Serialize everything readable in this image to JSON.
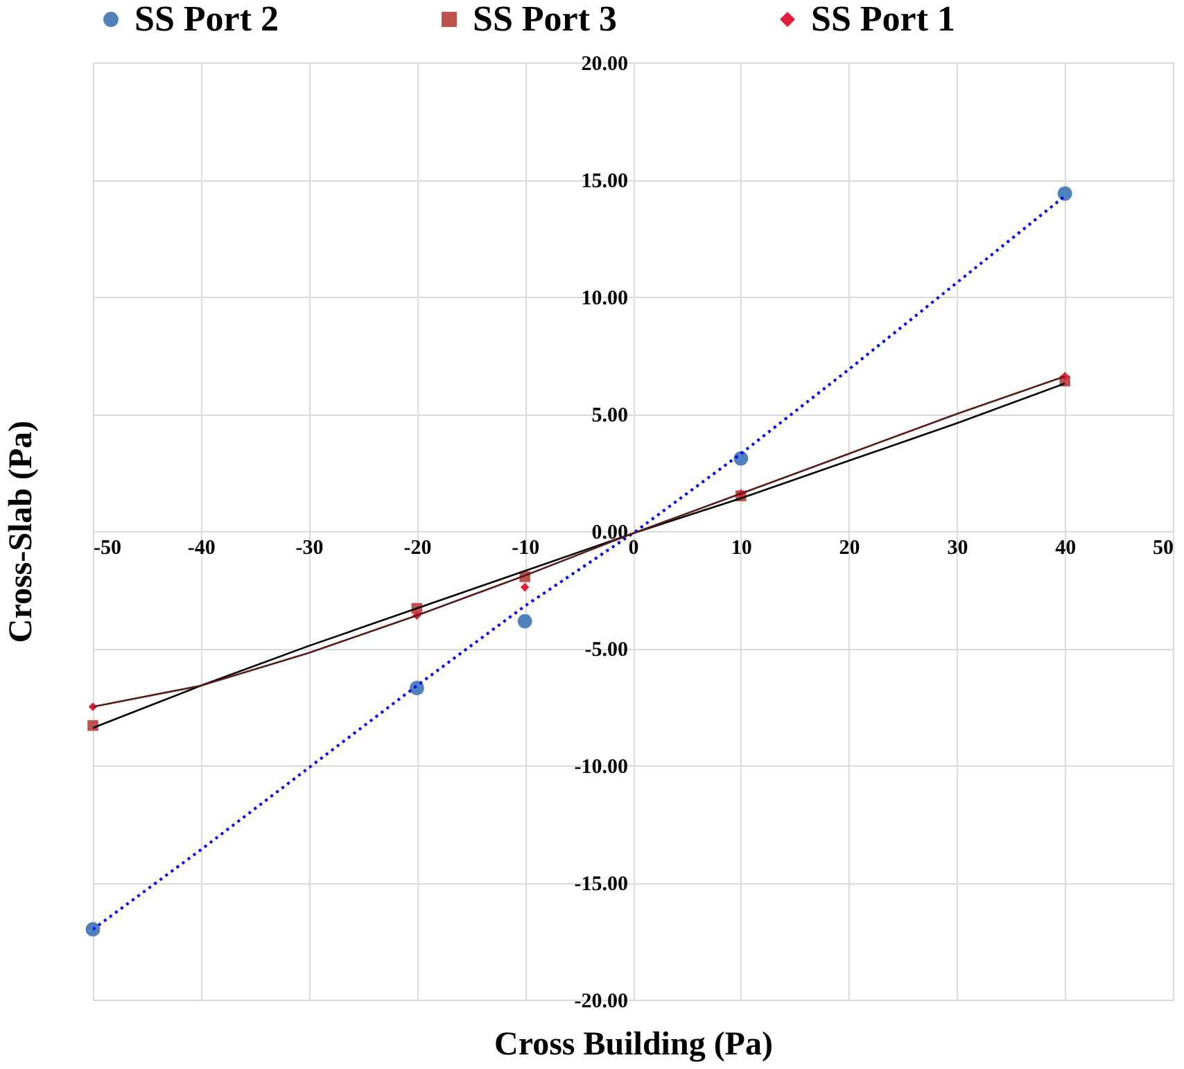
{
  "chart_data": {
    "type": "scatter",
    "xlabel": "Cross Building (Pa)",
    "ylabel": "Cross-Slab (Pa)",
    "xlim": [
      -50,
      50
    ],
    "xticks": [
      -50,
      -40,
      -30,
      -20,
      -10,
      0,
      10,
      20,
      30,
      40,
      50
    ],
    "ylim": [
      -20,
      20
    ],
    "yticks": [
      {
        "value": -20,
        "label": "-20.00"
      },
      {
        "value": -15,
        "label": "-15.00"
      },
      {
        "value": -10,
        "label": "-10.00"
      },
      {
        "value": -5,
        "label": "-5.00"
      },
      {
        "value": 0,
        "label": "0.00"
      },
      {
        "value": 5,
        "label": "5.00"
      },
      {
        "value": 10,
        "label": "10.00"
      },
      {
        "value": 15,
        "label": "15.00"
      },
      {
        "value": 20,
        "label": "20.00"
      }
    ],
    "grid": true,
    "legend": "top",
    "series": [
      {
        "name": "SS Port 2",
        "marker": "circle",
        "color": "#4f81bd",
        "x": [
          -50,
          -20,
          -10,
          10,
          40
        ],
        "values": [
          -17.0,
          -6.7,
          -3.85,
          3.1,
          14.4
        ]
      },
      {
        "name": "SS Port 3",
        "marker": "square",
        "color": "#c0504d",
        "x": [
          -50,
          -20,
          -10,
          10,
          40
        ],
        "values": [
          -8.3,
          -3.3,
          -1.95,
          1.5,
          6.4
        ]
      },
      {
        "name": "SS Port 1",
        "marker": "diamond",
        "color": "#e0203a",
        "x": [
          -50,
          -20,
          -10,
          10,
          40
        ],
        "values": [
          -7.5,
          -3.6,
          -2.4,
          1.6,
          6.6
        ]
      },
      {
        "type": "line",
        "marker": "none",
        "line_style": "dotted",
        "color": "#0000ff",
        "x": [
          -50,
          -40,
          -30,
          -20,
          -10,
          0,
          10,
          20,
          30,
          40
        ],
        "values": [
          -17.0,
          -13.6,
          -10.1,
          -6.6,
          -3.2,
          -0.1,
          3.3,
          6.9,
          10.6,
          14.3
        ]
      },
      {
        "type": "line",
        "marker": "none",
        "line_style": "solid",
        "color": "#000000",
        "x": [
          -50,
          -40,
          -30,
          -20,
          -10,
          0,
          10,
          20,
          30,
          40
        ],
        "values": [
          -8.4,
          -6.6,
          -4.9,
          -3.3,
          -1.7,
          -0.1,
          1.4,
          3.0,
          4.6,
          6.3
        ]
      },
      {
        "type": "line",
        "marker": "none",
        "line_style": "solid",
        "color": "#5a1a1a",
        "x": [
          -50,
          -40,
          -30,
          -20,
          -10,
          0,
          10,
          20,
          30,
          40
        ],
        "values": [
          -7.5,
          -6.6,
          -5.2,
          -3.6,
          -1.9,
          -0.1,
          1.6,
          3.3,
          5.0,
          6.6
        ]
      }
    ]
  }
}
